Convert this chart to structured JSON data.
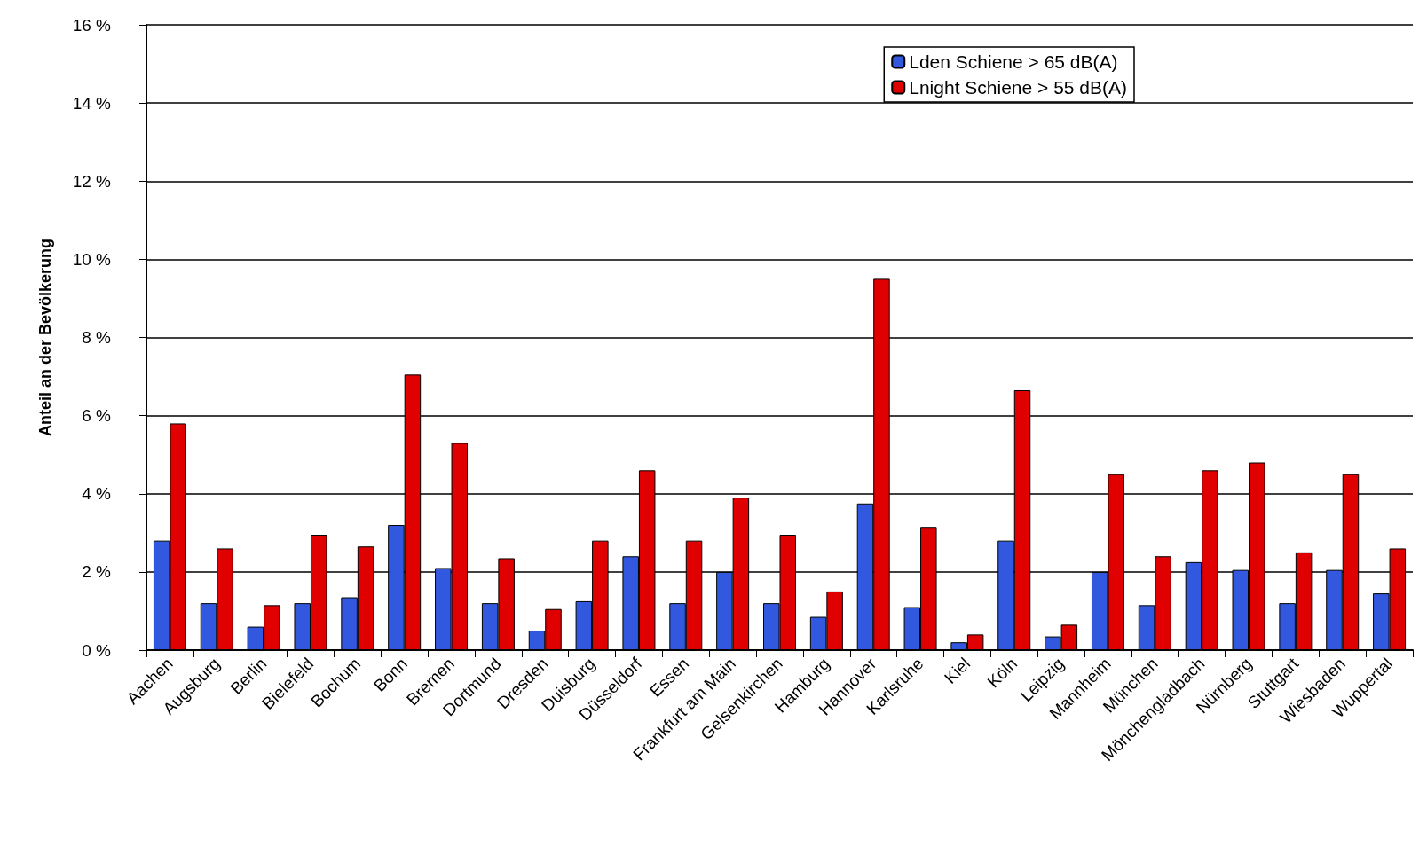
{
  "chart_data": {
    "type": "bar",
    "ylabel": "Anteil an der Bevölkerung",
    "categories": [
      "Aachen",
      "Augsburg",
      "Berlin",
      "Bielefeld",
      "Bochum",
      "Bonn",
      "Bremen",
      "Dortmund",
      "Dresden",
      "Duisburg",
      "Düsseldorf",
      "Essen",
      "Frankfurt am Main",
      "Gelsenkirchen",
      "Hamburg",
      "Hannover",
      "Karlsruhe",
      "Kiel",
      "Köln",
      "Leipzig",
      "Mannheim",
      "München",
      "Mönchengladbach",
      "Nürnberg",
      "Stuttgart",
      "Wiesbaden",
      "Wuppertal"
    ],
    "series": [
      {
        "name": "Lden Schiene > 65 dB(A)",
        "color": "#3358e0",
        "values": [
          2.8,
          1.2,
          0.6,
          1.2,
          1.35,
          3.2,
          2.1,
          1.2,
          0.5,
          1.25,
          2.4,
          1.2,
          2.0,
          1.2,
          0.85,
          3.75,
          1.1,
          0.2,
          2.8,
          0.35,
          2.0,
          1.15,
          2.25,
          2.05,
          1.2,
          2.05,
          1.45
        ]
      },
      {
        "name": "Lnight Schiene > 55 dB(A)",
        "color": "#e00000",
        "values": [
          5.8,
          2.6,
          1.15,
          2.95,
          2.65,
          7.05,
          5.3,
          2.35,
          1.05,
          2.8,
          4.6,
          2.8,
          3.9,
          2.95,
          1.5,
          9.5,
          3.15,
          0.4,
          6.65,
          0.65,
          4.5,
          2.4,
          4.6,
          4.8,
          2.5,
          4.5,
          2.6
        ]
      }
    ],
    "ylim": [
      0,
      16
    ],
    "yticks": [
      {
        "value": 0,
        "label": "0 %"
      },
      {
        "value": 2,
        "label": "2 %"
      },
      {
        "value": 4,
        "label": "4 %"
      },
      {
        "value": 6,
        "label": "6 %"
      },
      {
        "value": 8,
        "label": "8 %"
      },
      {
        "value": 10,
        "label": "10 %"
      },
      {
        "value": 12,
        "label": "12 %"
      },
      {
        "value": 14,
        "label": "14 %"
      },
      {
        "value": 16,
        "label": "16 %"
      }
    ],
    "grid": "y",
    "legend": "top right"
  }
}
